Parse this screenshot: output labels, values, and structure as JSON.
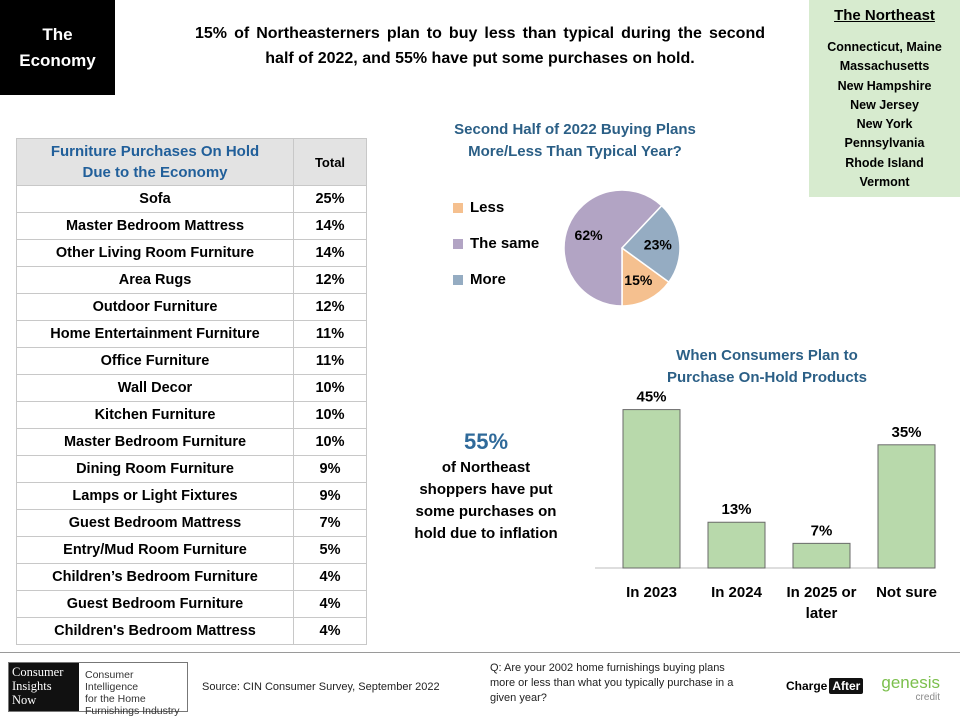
{
  "badge": {
    "line1": "The",
    "line2": "Economy"
  },
  "headline": "15% of Northeasterners plan to buy less than typical during the second half of 2022, and 55% have put some purchases on hold.",
  "region": {
    "title": "The Northeast",
    "states": [
      "Connecticut, Maine",
      "Massachusetts",
      "New Hampshire",
      "New Jersey",
      "New York",
      "Pennsylvania",
      "Rhode Island",
      "Vermont"
    ]
  },
  "table": {
    "header_item_line1": "Furniture Purchases On Hold",
    "header_item_line2": "Due to the Economy",
    "header_total": "Total",
    "rows": [
      {
        "item": "Sofa",
        "total": "25%"
      },
      {
        "item": "Master Bedroom Mattress",
        "total": "14%"
      },
      {
        "item": "Other Living Room Furniture",
        "total": "14%"
      },
      {
        "item": "Area Rugs",
        "total": "12%"
      },
      {
        "item": "Outdoor Furniture",
        "total": "12%"
      },
      {
        "item": "Home Entertainment Furniture",
        "total": "11%"
      },
      {
        "item": "Office Furniture",
        "total": "11%"
      },
      {
        "item": "Wall Decor",
        "total": "10%"
      },
      {
        "item": "Kitchen Furniture",
        "total": "10%"
      },
      {
        "item": "Master Bedroom Furniture",
        "total": "10%"
      },
      {
        "item": "Dining Room Furniture",
        "total": "9%"
      },
      {
        "item": "Lamps or Light Fixtures",
        "total": "9%"
      },
      {
        "item": "Guest Bedroom Mattress",
        "total": "7%"
      },
      {
        "item": "Entry/Mud Room Furniture",
        "total": "5%"
      },
      {
        "item": "Children’s Bedroom Furniture",
        "total": "4%"
      },
      {
        "item": "Guest Bedroom Furniture",
        "total": "4%"
      },
      {
        "item": "Children's Bedroom Mattress",
        "total": "4%"
      }
    ]
  },
  "callout": {
    "big": "55%",
    "text_lines": [
      "of Northeast",
      "shoppers have put",
      "some purchases on",
      "hold due to inflation"
    ]
  },
  "footer": {
    "logo_left": [
      "Consumer",
      "Insights",
      "Now"
    ],
    "logo_right": [
      "Consumer Intelligence",
      "for the Home",
      "Furnishings Industry"
    ],
    "source": "Source: CIN Consumer Survey, September 2022",
    "question": "Q: Are your 2002 home furnishings buying plans more or less than what you typically purchase in a given year?",
    "charge": "Charge",
    "after": "After",
    "genesis": "genesis",
    "genesis_sub": "credit"
  },
  "chart_data": [
    {
      "type": "pie",
      "title_line1": "Second Half of 2022 Buying Plans",
      "title_line2": "More/Less Than Typical Year?",
      "slices": [
        {
          "label": "Less",
          "value": 15,
          "display": "15%",
          "color": "#f5c08f"
        },
        {
          "label": "The same",
          "value": 62,
          "display": "62%",
          "color": "#b2a4c4"
        },
        {
          "label": "More",
          "value": 23,
          "display": "23%",
          "color": "#95acc2"
        }
      ],
      "legend_position": "left"
    },
    {
      "type": "bar",
      "title_line1": "When Consumers Plan to",
      "title_line2": "Purchase On-Hold Products",
      "categories": [
        "In 2023",
        "In 2024",
        "In 2025 or later",
        "Not sure"
      ],
      "category_lines": [
        [
          "In 2023"
        ],
        [
          "In 2024"
        ],
        [
          "In 2025 or",
          "later"
        ],
        [
          "Not sure"
        ]
      ],
      "values": [
        45,
        13,
        7,
        35
      ],
      "labels": [
        "45%",
        "13%",
        "7%",
        "35%"
      ],
      "ylim": [
        0,
        50
      ],
      "bar_color": "#b8d9ab",
      "bar_stroke": "#6a6a6a",
      "grid": false
    }
  ]
}
